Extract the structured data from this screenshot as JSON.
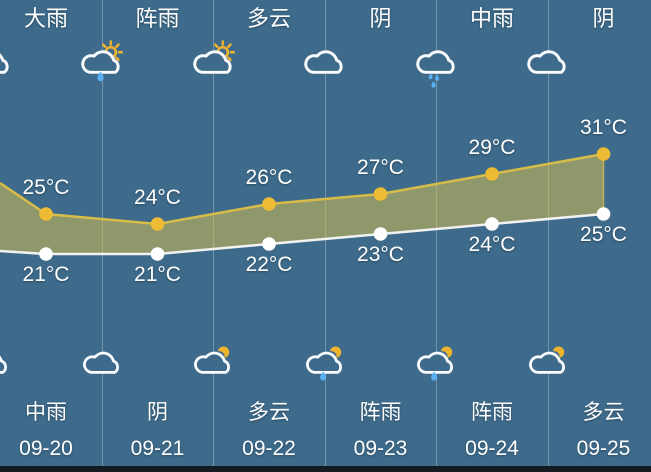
{
  "app": {
    "name": "six-day-weather-forecast",
    "background_color": "#3e6b8b",
    "divider_color": "rgba(255,255,255,0.27)",
    "bottom_bar_color": "#141a22",
    "text_color": "#ffffff",
    "rain_drop_color": "#59b1f2",
    "sun_moon_color": "#ecb32f"
  },
  "columns": [
    {
      "date": "09-20",
      "day_label": "大雨",
      "day_icon": "heavy-rain",
      "night_label": "中雨",
      "night_icon": "moderate-rain",
      "high_label": "25°C",
      "low_label": "21°C"
    },
    {
      "date": "09-21",
      "day_label": "阵雨",
      "day_icon": "showers-day",
      "night_label": "阴",
      "night_icon": "overcast",
      "high_label": "24°C",
      "low_label": "21°C"
    },
    {
      "date": "09-22",
      "day_label": "多云",
      "day_icon": "cloudy-day",
      "night_label": "多云",
      "night_icon": "cloudy-night",
      "high_label": "26°C",
      "low_label": "22°C"
    },
    {
      "date": "09-23",
      "day_label": "阴",
      "day_icon": "overcast",
      "night_label": "阵雨",
      "night_icon": "showers-night",
      "high_label": "27°C",
      "low_label": "23°C"
    },
    {
      "date": "09-24",
      "day_label": "中雨",
      "day_icon": "moderate-rain",
      "night_label": "阵雨",
      "night_icon": "showers-night",
      "high_label": "29°C",
      "low_label": "24°C"
    },
    {
      "date": "09-25",
      "day_label": "阴",
      "day_icon": "overcast",
      "night_label": "多云",
      "night_icon": "cloudy-night",
      "high_label": "31°C",
      "low_label": "25°C"
    }
  ],
  "chart_data": {
    "type": "line",
    "categories": [
      "09-20",
      "09-21",
      "09-22",
      "09-23",
      "09-24",
      "09-25"
    ],
    "series": [
      {
        "name": "daytime-high",
        "unit": "°C",
        "values": [
          25,
          24,
          26,
          27,
          29,
          31
        ],
        "dot_color": "#edbc34",
        "line_color": "#d8bc4a"
      },
      {
        "name": "nighttime-low",
        "unit": "°C",
        "values": [
          21,
          21,
          22,
          23,
          24,
          25
        ],
        "dot_color": "#ffffff",
        "line_color": "#f2f2f2"
      }
    ],
    "left_edge_values": {
      "high": 28.1,
      "low": 21.3
    },
    "area_fill": "rgba(224,198,74,0.5)",
    "ylim": [
      18,
      34
    ],
    "grid": "vertical-column-dividers-only",
    "legend": "none",
    "title": ""
  }
}
